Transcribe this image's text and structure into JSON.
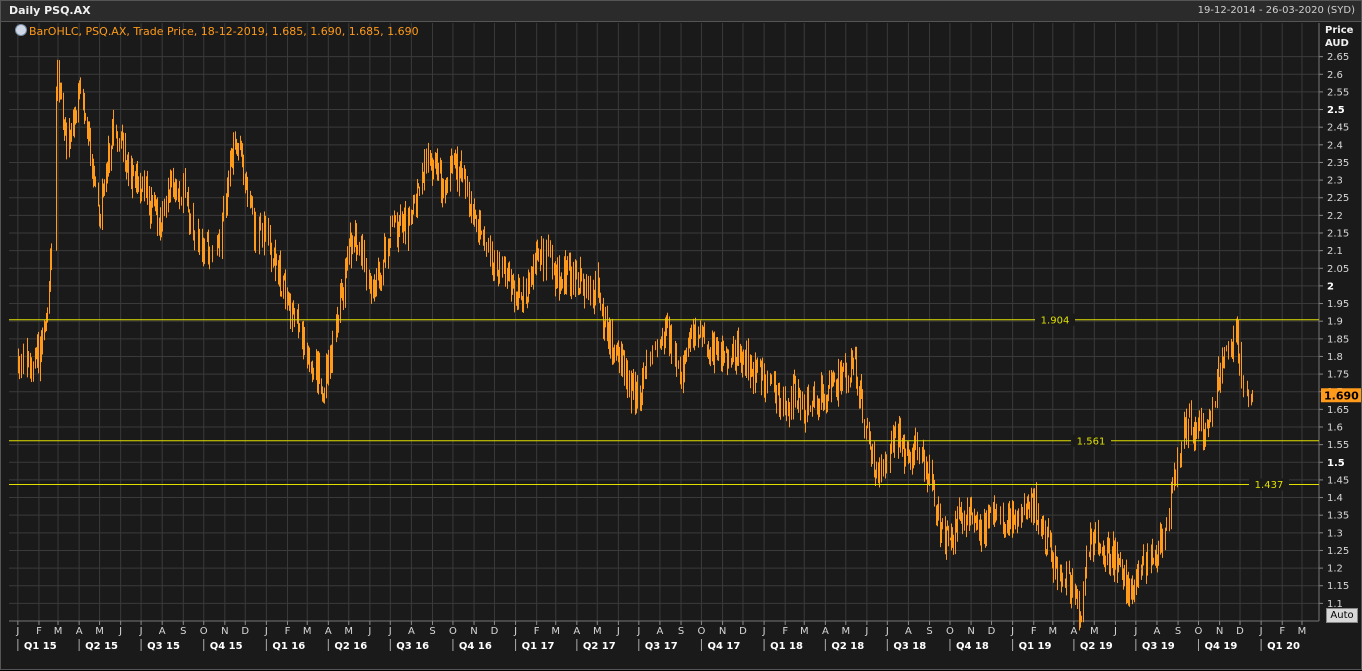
{
  "header": {
    "title": "Daily PSQ.AX",
    "date_range": "19-12-2014 - 26-03-2020 (SYD)"
  },
  "legend": {
    "text": "BarOHLC, PSQ.AX, Trade Price, 18-12-2019, 1.685, 1.690, 1.685, 1.690"
  },
  "price_axis": {
    "title_line1": "Price",
    "title_line2": "AUD",
    "last_price": "1.690",
    "auto_button": "Auto"
  },
  "colors": {
    "background": "#1a1a1a",
    "grid": "#3a3a3a",
    "series": "#ff9a1a",
    "levels": "#e0e000",
    "last_price_tag": "#ff9a1a"
  },
  "chart_data": {
    "type": "bar",
    "series_type": "OHLC",
    "ylim": [
      1.05,
      2.7
    ],
    "yticks": [
      "2.65",
      "2.6",
      "2.55",
      "2.5",
      "2.45",
      "2.4",
      "2.35",
      "2.3",
      "2.25",
      "2.2",
      "2.15",
      "2.1",
      "2.05",
      "2",
      "1.95",
      "1.9",
      "1.85",
      "1.8",
      "1.75",
      "1.7",
      "1.65",
      "1.6",
      "1.55",
      "1.5",
      "1.45",
      "1.4",
      "1.35",
      "1.3",
      "1.25",
      "1.2",
      "1.15",
      "1.1"
    ],
    "bold_yticks": [
      "2.5",
      "2",
      "1.5"
    ],
    "xlim": [
      "2014-12-19",
      "2020-03-26"
    ],
    "month_labels": [
      "J",
      "F",
      "M",
      "A",
      "M",
      "J",
      "J",
      "A",
      "S",
      "O",
      "N",
      "D",
      "J",
      "F",
      "M",
      "A",
      "M",
      "J",
      "J",
      "A",
      "S",
      "O",
      "N",
      "D",
      "J",
      "F",
      "M",
      "A",
      "M",
      "J",
      "J",
      "A",
      "S",
      "O",
      "N",
      "D",
      "J",
      "F",
      "M",
      "A",
      "M",
      "J",
      "J",
      "A",
      "S",
      "O",
      "N",
      "D",
      "J",
      "F",
      "M",
      "A",
      "M",
      "J",
      "J",
      "A",
      "S",
      "O",
      "N",
      "D",
      "J",
      "F",
      "M"
    ],
    "quarter_labels": [
      "Q1 15",
      "Q2 15",
      "Q3 15",
      "Q4 15",
      "Q1 16",
      "Q2 16",
      "Q3 16",
      "Q4 16",
      "Q1 17",
      "Q2 17",
      "Q3 17",
      "Q4 17",
      "Q1 18",
      "Q2 18",
      "Q3 18",
      "Q4 18",
      "Q1 19",
      "Q2 19",
      "Q3 19",
      "Q4 19",
      "Q1 20"
    ],
    "levels": [
      {
        "label": "1.904",
        "value": 1.904
      },
      {
        "label": "1.561",
        "value": 1.561
      },
      {
        "label": "1.437",
        "value": 1.437
      }
    ],
    "anchors": [
      [
        "2015-01-01",
        1.79
      ],
      [
        "2015-01-15",
        1.79
      ],
      [
        "2015-02-01",
        1.81
      ],
      [
        "2015-02-12",
        1.88
      ],
      [
        "2015-02-20",
        2.15
      ],
      [
        "2015-02-27",
        2.6
      ],
      [
        "2015-03-05",
        2.55
      ],
      [
        "2015-03-12",
        2.4
      ],
      [
        "2015-03-20",
        2.42
      ],
      [
        "2015-03-31",
        2.58
      ],
      [
        "2015-04-10",
        2.45
      ],
      [
        "2015-04-20",
        2.35
      ],
      [
        "2015-05-01",
        2.2
      ],
      [
        "2015-05-10",
        2.35
      ],
      [
        "2015-05-20",
        2.42
      ],
      [
        "2015-06-01",
        2.43
      ],
      [
        "2015-06-15",
        2.3
      ],
      [
        "2015-07-01",
        2.3
      ],
      [
        "2015-07-15",
        2.22
      ],
      [
        "2015-08-01",
        2.18
      ],
      [
        "2015-08-15",
        2.3
      ],
      [
        "2015-09-01",
        2.27
      ],
      [
        "2015-09-15",
        2.15
      ],
      [
        "2015-10-01",
        2.1
      ],
      [
        "2015-10-15",
        2.08
      ],
      [
        "2015-11-01",
        2.22
      ],
      [
        "2015-11-15",
        2.4
      ],
      [
        "2015-11-25",
        2.35
      ],
      [
        "2015-12-05",
        2.25
      ],
      [
        "2015-12-15",
        2.15
      ],
      [
        "2016-01-01",
        2.14
      ],
      [
        "2016-01-15",
        2.05
      ],
      [
        "2016-02-01",
        1.95
      ],
      [
        "2016-02-15",
        1.88
      ],
      [
        "2016-03-01",
        1.82
      ],
      [
        "2016-03-15",
        1.75
      ],
      [
        "2016-03-25",
        1.72
      ],
      [
        "2016-04-05",
        1.82
      ],
      [
        "2016-04-15",
        1.9
      ],
      [
        "2016-05-01",
        2.12
      ],
      [
        "2016-05-15",
        2.12
      ],
      [
        "2016-06-01",
        2.02
      ],
      [
        "2016-06-15",
        2.0
      ],
      [
        "2016-07-01",
        2.18
      ],
      [
        "2016-07-15",
        2.16
      ],
      [
        "2016-08-01",
        2.2
      ],
      [
        "2016-08-15",
        2.32
      ],
      [
        "2016-09-01",
        2.35
      ],
      [
        "2016-09-15",
        2.28
      ],
      [
        "2016-10-01",
        2.34
      ],
      [
        "2016-10-15",
        2.3
      ],
      [
        "2016-11-01",
        2.2
      ],
      [
        "2016-11-15",
        2.12
      ],
      [
        "2016-12-01",
        2.05
      ],
      [
        "2016-12-15",
        2.02
      ],
      [
        "2017-01-01",
        1.98
      ],
      [
        "2017-01-15",
        1.98
      ],
      [
        "2017-02-01",
        2.08
      ],
      [
        "2017-02-15",
        2.08
      ],
      [
        "2017-03-01",
        2.02
      ],
      [
        "2017-03-15",
        2.03
      ],
      [
        "2017-04-01",
        2.02
      ],
      [
        "2017-04-15",
        1.98
      ],
      [
        "2017-05-01",
        2.0
      ],
      [
        "2017-05-15",
        1.85
      ],
      [
        "2017-06-01",
        1.82
      ],
      [
        "2017-06-15",
        1.72
      ],
      [
        "2017-07-01",
        1.68
      ],
      [
        "2017-07-15",
        1.8
      ],
      [
        "2017-08-01",
        1.88
      ],
      [
        "2017-08-15",
        1.85
      ],
      [
        "2017-09-01",
        1.76
      ],
      [
        "2017-09-15",
        1.88
      ],
      [
        "2017-10-01",
        1.9
      ],
      [
        "2017-10-15",
        1.82
      ],
      [
        "2017-11-01",
        1.8
      ],
      [
        "2017-11-15",
        1.82
      ],
      [
        "2017-12-01",
        1.8
      ],
      [
        "2017-12-15",
        1.76
      ],
      [
        "2018-01-01",
        1.72
      ],
      [
        "2018-01-15",
        1.7
      ],
      [
        "2018-02-01",
        1.64
      ],
      [
        "2018-02-15",
        1.7
      ],
      [
        "2018-03-01",
        1.65
      ],
      [
        "2018-03-15",
        1.67
      ],
      [
        "2018-04-01",
        1.7
      ],
      [
        "2018-04-15",
        1.72
      ],
      [
        "2018-05-01",
        1.76
      ],
      [
        "2018-05-15",
        1.77
      ],
      [
        "2018-06-01",
        1.58
      ],
      [
        "2018-06-15",
        1.48
      ],
      [
        "2018-07-01",
        1.52
      ],
      [
        "2018-07-15",
        1.58
      ],
      [
        "2018-08-01",
        1.5
      ],
      [
        "2018-08-15",
        1.55
      ],
      [
        "2018-09-01",
        1.46
      ],
      [
        "2018-09-15",
        1.32
      ],
      [
        "2018-10-01",
        1.25
      ],
      [
        "2018-10-15",
        1.35
      ],
      [
        "2018-11-01",
        1.35
      ],
      [
        "2018-11-15",
        1.3
      ],
      [
        "2018-12-01",
        1.34
      ],
      [
        "2018-12-15",
        1.33
      ],
      [
        "2019-01-01",
        1.36
      ],
      [
        "2019-01-15",
        1.36
      ],
      [
        "2019-02-01",
        1.38
      ],
      [
        "2019-02-15",
        1.3
      ],
      [
        "2019-03-01",
        1.22
      ],
      [
        "2019-03-15",
        1.18
      ],
      [
        "2019-04-01",
        1.12
      ],
      [
        "2019-04-10",
        1.08
      ],
      [
        "2019-04-20",
        1.24
      ],
      [
        "2019-05-01",
        1.28
      ],
      [
        "2019-05-15",
        1.25
      ],
      [
        "2019-06-01",
        1.24
      ],
      [
        "2019-06-15",
        1.16
      ],
      [
        "2019-07-01",
        1.15
      ],
      [
        "2019-07-15",
        1.22
      ],
      [
        "2019-08-01",
        1.25
      ],
      [
        "2019-08-15",
        1.32
      ],
      [
        "2019-08-25",
        1.42
      ],
      [
        "2019-09-05",
        1.55
      ],
      [
        "2019-09-15",
        1.62
      ],
      [
        "2019-10-01",
        1.58
      ],
      [
        "2019-10-15",
        1.62
      ],
      [
        "2019-11-01",
        1.75
      ],
      [
        "2019-11-15",
        1.8
      ],
      [
        "2019-11-25",
        1.86
      ],
      [
        "2019-12-05",
        1.7
      ],
      [
        "2019-12-18",
        1.69
      ]
    ],
    "last_bar": {
      "date": "18-12-2019",
      "open": 1.685,
      "high": 1.69,
      "low": 1.685,
      "close": 1.69
    }
  }
}
